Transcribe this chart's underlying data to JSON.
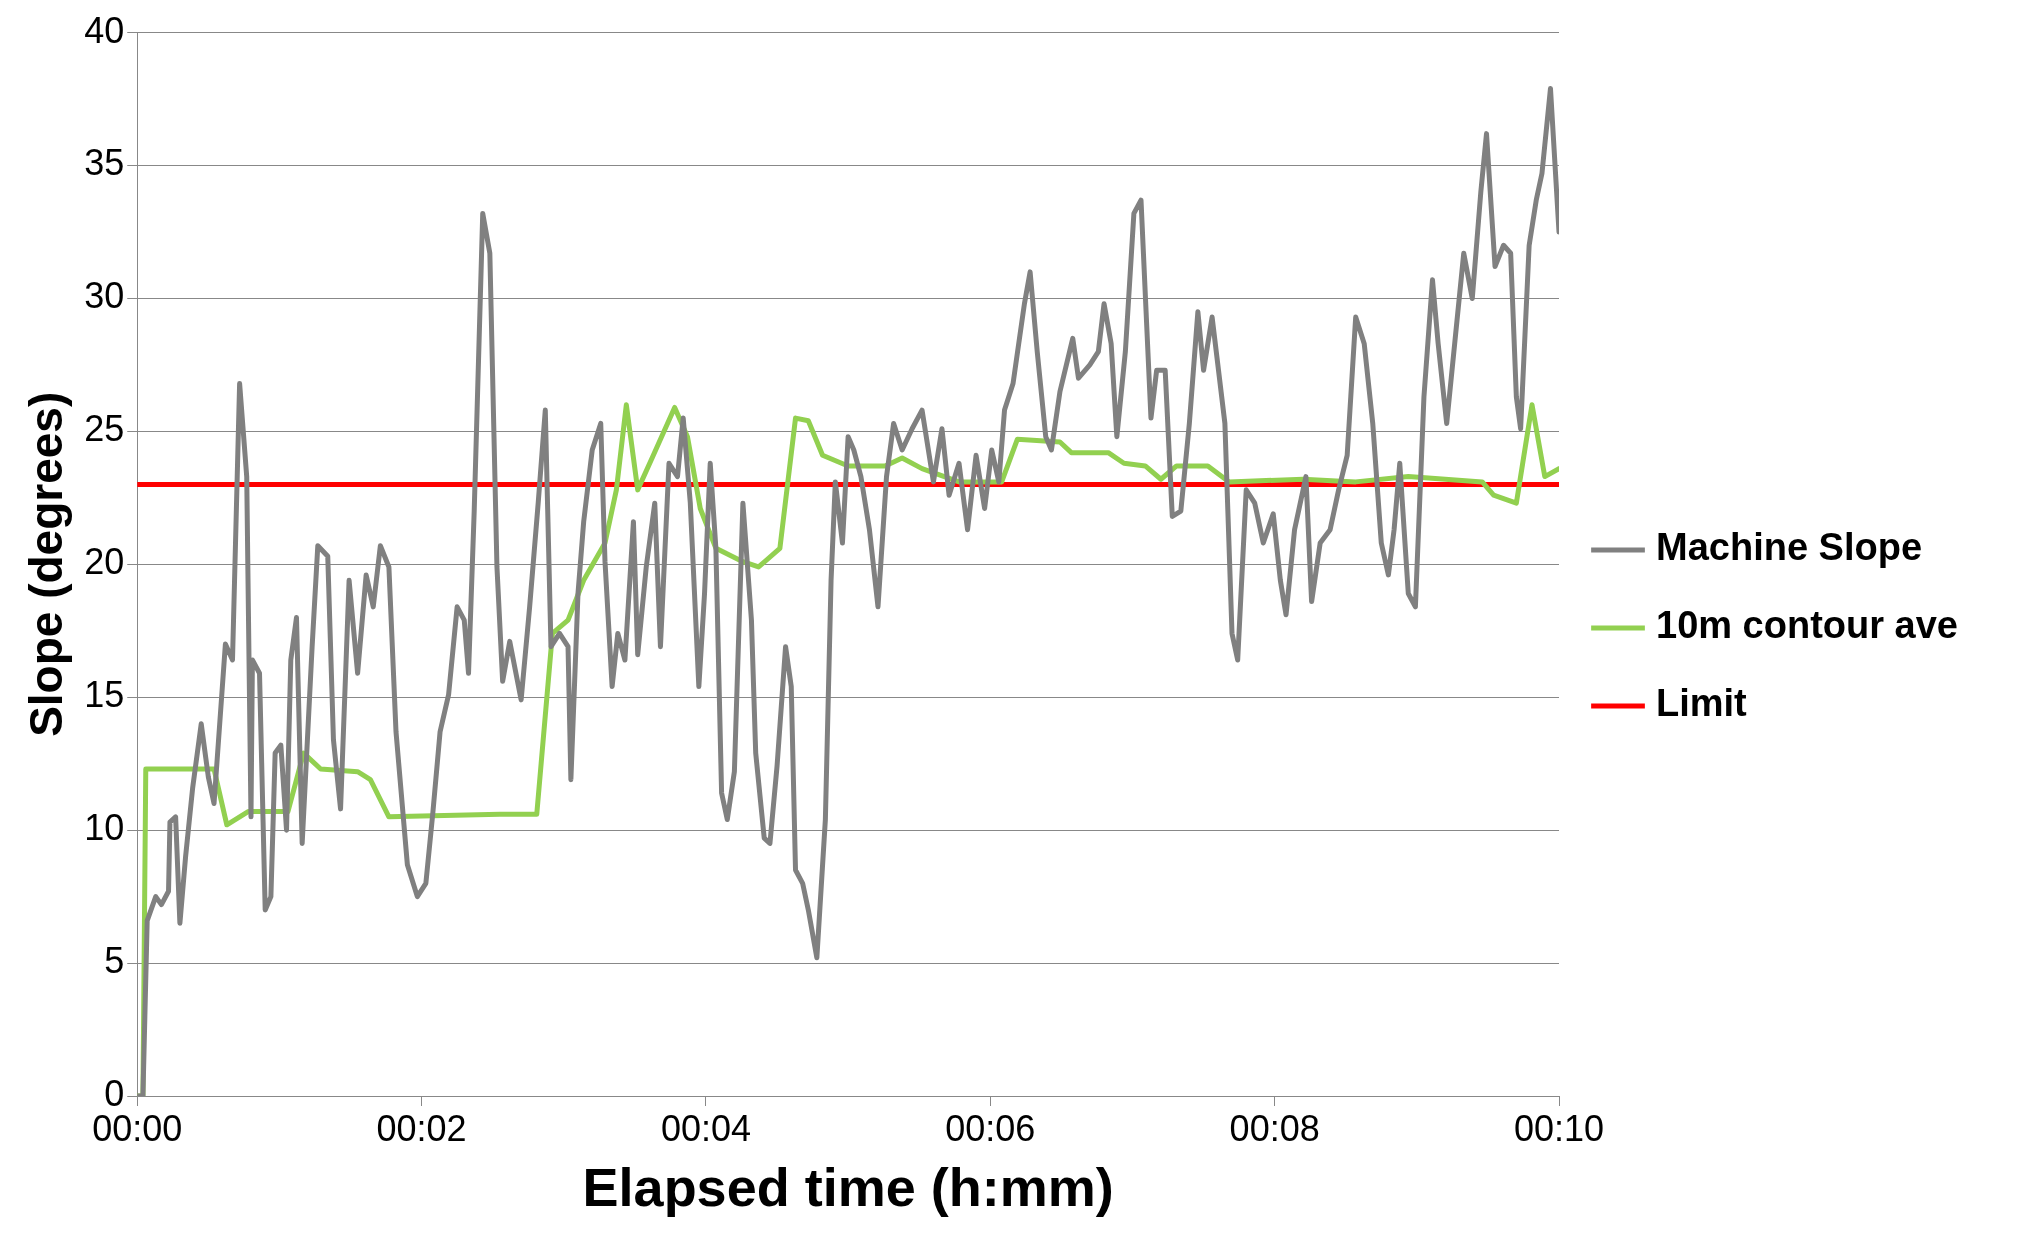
{
  "chart_data": {
    "type": "line",
    "xlabel": "Elapsed time (h:mm)",
    "ylabel": "Slope (degrees)",
    "xlim": [
      0,
      10
    ],
    "ylim": [
      0,
      40
    ],
    "xticks": [
      {
        "value": 0,
        "label": "00:00"
      },
      {
        "value": 2,
        "label": "00:02"
      },
      {
        "value": 4,
        "label": "00:04"
      },
      {
        "value": 6,
        "label": "00:06"
      },
      {
        "value": 8,
        "label": "00:08"
      },
      {
        "value": 10,
        "label": "00:10"
      }
    ],
    "yticks": [
      0,
      5,
      10,
      15,
      20,
      25,
      30,
      35,
      40
    ],
    "grid": "y",
    "legend": "right",
    "marker": "none",
    "line_style": "solid",
    "series": [
      {
        "name": "Machine Slope",
        "color": "#808080",
        "x": [
          0,
          0.04,
          0.07,
          0.13,
          0.17,
          0.22,
          0.23,
          0.27,
          0.3,
          0.34,
          0.39,
          0.45,
          0.5,
          0.54,
          0.62,
          0.67,
          0.72,
          0.77,
          0.8,
          0.81,
          0.86,
          0.9,
          0.94,
          0.97,
          1.01,
          1.05,
          1.08,
          1.12,
          1.16,
          1.23,
          1.27,
          1.34,
          1.38,
          1.43,
          1.49,
          1.55,
          1.61,
          1.66,
          1.71,
          1.77,
          1.82,
          1.9,
          1.97,
          2.03,
          2.08,
          2.13,
          2.19,
          2.25,
          2.3,
          2.33,
          2.37,
          2.43,
          2.48,
          2.53,
          2.57,
          2.62,
          2.7,
          2.76,
          2.82,
          2.87,
          2.91,
          2.97,
          3.03,
          3.05,
          3.1,
          3.14,
          3.2,
          3.26,
          3.29,
          3.34,
          3.38,
          3.43,
          3.49,
          3.52,
          3.58,
          3.64,
          3.68,
          3.74,
          3.8,
          3.84,
          3.89,
          3.95,
          3.99,
          4.03,
          4.07,
          4.11,
          4.15,
          4.2,
          4.26,
          4.32,
          4.35,
          4.41,
          4.45,
          4.5,
          4.56,
          4.6,
          4.63,
          4.68,
          4.72,
          4.78,
          4.84,
          4.88,
          4.91,
          4.96,
          5.0,
          5.04,
          5.09,
          5.15,
          5.21,
          5.27,
          5.32,
          5.38,
          5.45,
          5.52,
          5.6,
          5.66,
          5.71,
          5.78,
          5.84,
          5.9,
          5.96,
          6.01,
          6.06,
          6.1,
          6.16,
          6.24,
          6.28,
          6.33,
          6.39,
          6.43,
          6.49,
          6.58,
          6.62,
          6.7,
          6.76,
          6.8,
          6.85,
          6.89,
          6.95,
          7.01,
          7.06,
          7.1,
          7.13,
          7.17,
          7.23,
          7.28,
          7.34,
          7.4,
          7.46,
          7.5,
          7.56,
          7.65,
          7.7,
          7.74,
          7.8,
          7.86,
          7.92,
          7.99,
          8.04,
          8.08,
          8.14,
          8.22,
          8.26,
          8.32,
          8.39,
          8.45,
          8.51,
          8.57,
          8.63,
          8.69,
          8.75,
          8.8,
          8.84,
          8.88,
          8.94,
          8.99,
          9.05,
          9.11,
          9.15,
          9.21,
          9.27,
          9.33,
          9.39,
          9.45,
          9.49,
          9.55,
          9.61,
          9.66,
          9.7,
          9.73,
          9.79,
          9.84,
          9.88,
          9.94,
          10
        ],
        "values": [
          0,
          0,
          6.6,
          7.5,
          7.2,
          7.7,
          10.3,
          10.5,
          6.5,
          9,
          11.6,
          14,
          12,
          11,
          17,
          16.4,
          26.8,
          23.3,
          10.5,
          16.4,
          15.9,
          7,
          7.5,
          12.9,
          13.2,
          10,
          16.4,
          18,
          9.5,
          16.9,
          20.7,
          20.3,
          13.4,
          10.8,
          19.4,
          15.9,
          19.6,
          18.4,
          20.7,
          19.9,
          13.7,
          8.7,
          7.5,
          8,
          10.7,
          13.7,
          15.1,
          18.4,
          17.9,
          15.9,
          22,
          33.2,
          31.7,
          19.9,
          15.6,
          17.1,
          14.9,
          18.4,
          22.3,
          25.8,
          16.9,
          17.4,
          16.9,
          11.9,
          18.9,
          21.6,
          24.3,
          25.3,
          20.1,
          15.4,
          17.4,
          16.4,
          21.6,
          16.6,
          19.9,
          22.3,
          16.9,
          23.8,
          23.3,
          25.5,
          22.3,
          15.4,
          18.9,
          23.8,
          20.6,
          11.4,
          10.4,
          12.2,
          22.3,
          17.9,
          12.9,
          9.7,
          9.5,
          12.4,
          16.9,
          15.4,
          8.5,
          8,
          7,
          5.2,
          10.4,
          19.4,
          23.1,
          20.8,
          24.8,
          24.3,
          23.3,
          21.3,
          18.4,
          23.3,
          25.3,
          24.3,
          25.1,
          25.8,
          23.1,
          25.1,
          22.6,
          23.8,
          21.3,
          24.1,
          22.1,
          24.3,
          23.1,
          25.8,
          26.8,
          29.8,
          31,
          28,
          24.8,
          24.3,
          26.5,
          28.5,
          27,
          27.5,
          28,
          29.8,
          28.3,
          24.8,
          28,
          33.2,
          33.7,
          29,
          25.5,
          27.3,
          27.3,
          21.8,
          22,
          25.3,
          29.5,
          27.3,
          29.3,
          25.3,
          17.4,
          16.4,
          22.8,
          22.3,
          20.8,
          21.9,
          19.4,
          18.1,
          21.3,
          23.3,
          18.6,
          20.8,
          21.3,
          22.8,
          24.1,
          29.3,
          28.3,
          25.3,
          20.8,
          19.6,
          21.3,
          23.8,
          18.9,
          18.4,
          26.3,
          30.7,
          28.3,
          25.3,
          28.5,
          31.7,
          30,
          34,
          36.2,
          31.2,
          32,
          31.7,
          26.3,
          25.1,
          32,
          33.7,
          34.7,
          37.9,
          32.5
        ]
      },
      {
        "name": "10m contour ave",
        "color": "#92d050",
        "x": [
          0,
          0.04,
          0.06,
          0.54,
          0.63,
          0.78,
          1.06,
          1.17,
          1.29,
          1.55,
          1.64,
          1.77,
          2.55,
          2.81,
          2.92,
          3.03,
          3.14,
          3.29,
          3.37,
          3.44,
          3.52,
          3.63,
          3.78,
          3.87,
          3.96,
          4.07,
          4.26,
          4.37,
          4.52,
          4.63,
          4.72,
          4.82,
          5.0,
          5.26,
          5.38,
          5.52,
          5.78,
          6.08,
          6.19,
          6.49,
          6.57,
          6.83,
          6.94,
          7.09,
          7.2,
          7.31,
          7.53,
          7.68,
          8.2,
          8.57,
          8.94,
          9.46,
          9.54,
          9.7,
          9.81,
          9.9,
          10
        ],
        "values": [
          0,
          0,
          12.3,
          12.3,
          10.2,
          10.7,
          10.7,
          12.9,
          12.3,
          12.2,
          11.9,
          10.5,
          10.6,
          10.6,
          17.4,
          17.9,
          19.4,
          20.8,
          22.8,
          26,
          22.8,
          24.1,
          25.9,
          24.8,
          22.1,
          20.6,
          20.1,
          19.9,
          20.6,
          25.5,
          25.4,
          24.1,
          23.7,
          23.7,
          24,
          23.6,
          23.1,
          23.1,
          24.7,
          24.6,
          24.2,
          24.2,
          23.8,
          23.7,
          23.2,
          23.7,
          23.7,
          23.1,
          23.2,
          23.1,
          23.3,
          23.1,
          22.6,
          22.3,
          26,
          23.3,
          23.6
        ]
      },
      {
        "name": "Limit",
        "color": "#ff0000",
        "x": [
          0,
          10
        ],
        "values": [
          23,
          23
        ]
      }
    ]
  }
}
